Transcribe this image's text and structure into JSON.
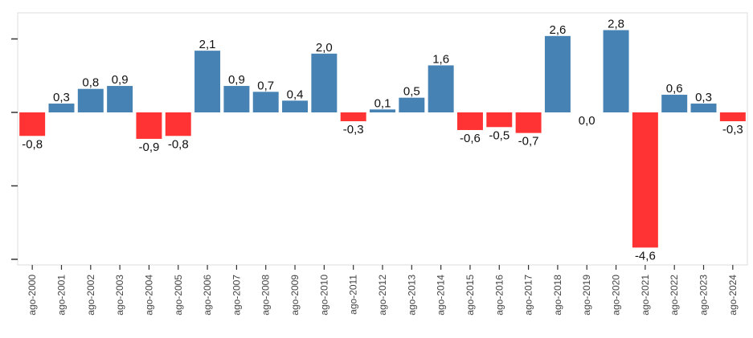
{
  "chart_data": {
    "type": "bar",
    "title": "",
    "xlabel": "",
    "ylabel": "",
    "categories": [
      "ago-2000",
      "ago-2001",
      "ago-2002",
      "ago-2003",
      "ago-2004",
      "ago-2005",
      "ago-2006",
      "ago-2007",
      "ago-2008",
      "ago-2009",
      "ago-2010",
      "ago-2011",
      "ago-2012",
      "ago-2013",
      "ago-2014",
      "ago-2015",
      "ago-2016",
      "ago-2017",
      "ago-2018",
      "ago-2019",
      "ago-2020",
      "ago-2021",
      "ago-2022",
      "ago-2023",
      "ago-2024"
    ],
    "values": [
      -0.8,
      0.3,
      0.8,
      0.9,
      -0.9,
      -0.8,
      2.1,
      0.9,
      0.7,
      0.4,
      2.0,
      -0.3,
      0.1,
      0.5,
      1.6,
      -0.6,
      -0.5,
      -0.7,
      2.6,
      0.0,
      2.8,
      -4.6,
      0.6,
      0.3,
      -0.3
    ],
    "value_labels": [
      "-0,8",
      "0,3",
      "0,8",
      "0,9",
      "-0,9",
      "-0,8",
      "2,1",
      "0,9",
      "0,7",
      "0,4",
      "2,0",
      "-0,3",
      "0,1",
      "0,5",
      "1,6",
      "-0,6",
      "-0,5",
      "-0,7",
      "2,6",
      "0,0",
      "2,8",
      "-4,6",
      "0,6",
      "0,3",
      "-0,3"
    ],
    "ylim": [
      -5,
      3.2
    ],
    "y_ticks": [
      -5,
      -2.5,
      0,
      2.5
    ],
    "y_tick_labels_visible": false,
    "grid": false,
    "colors": {
      "positive": "#4682b4",
      "negative": "#ff3333",
      "axis": "#333333",
      "border": "#dddddd"
    }
  }
}
